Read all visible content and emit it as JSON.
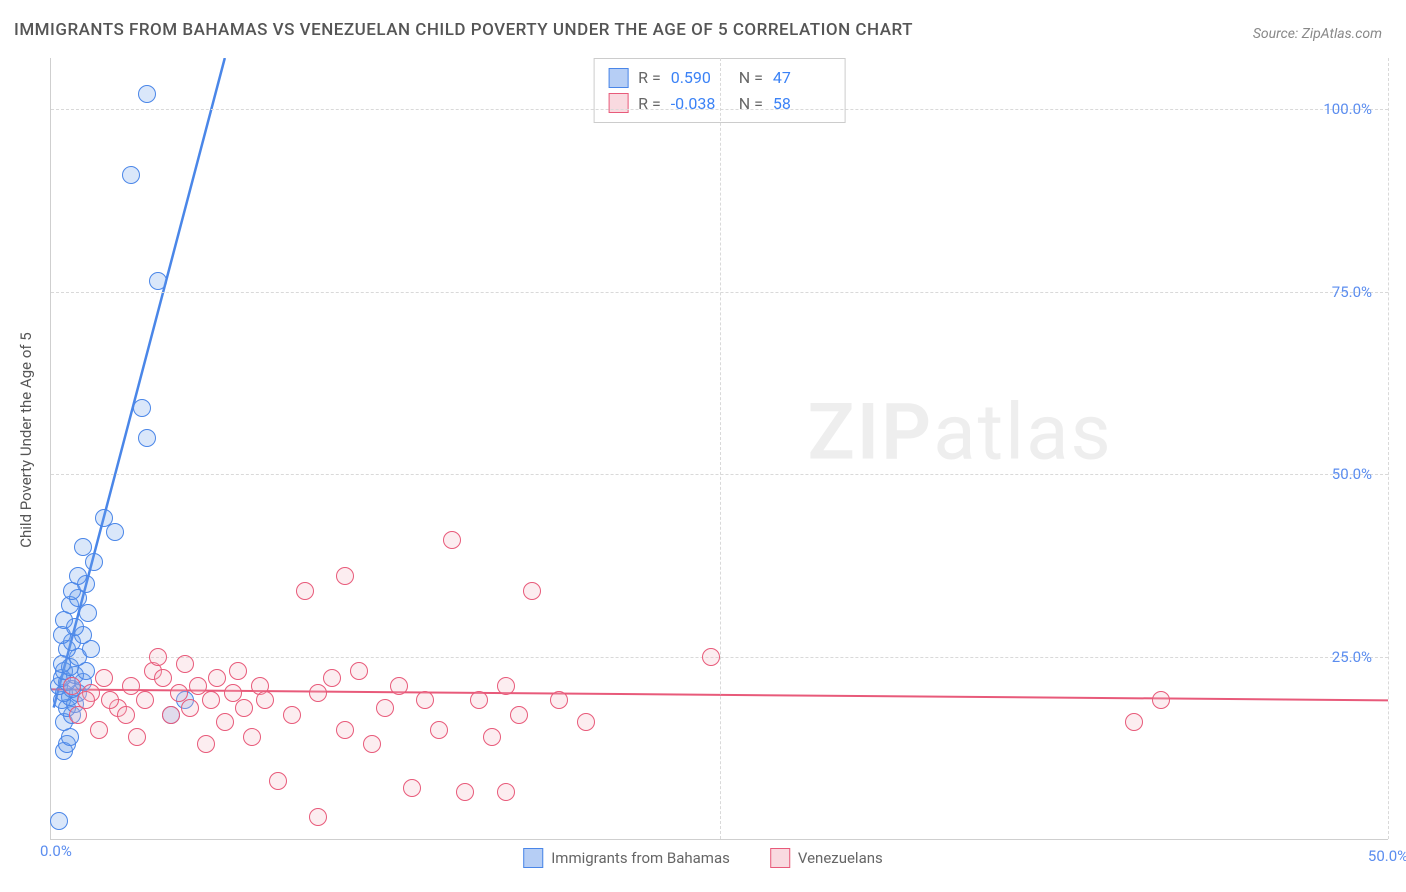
{
  "title": "IMMIGRANTS FROM BAHAMAS VS VENEZUELAN CHILD POVERTY UNDER THE AGE OF 5 CORRELATION CHART",
  "source": "Source: ZipAtlas.com",
  "watermark_main": "ZIP",
  "watermark_sub": "atlas",
  "y_axis_label": "Child Poverty Under the Age of 5",
  "chart": {
    "type": "scatter",
    "background_color": "#ffffff",
    "grid_color": "#d9d9d9",
    "axis_color": "#cfcfcf",
    "tick_label_color": "#5b8def",
    "xlim": [
      0,
      50
    ],
    "ylim": [
      0,
      107
    ],
    "x_ticks": [
      0,
      25,
      50
    ],
    "x_tick_labels": [
      "0.0%",
      "",
      "50.0%"
    ],
    "y_ticks": [
      25,
      50,
      75,
      100
    ],
    "y_tick_labels": [
      "25.0%",
      "50.0%",
      "75.0%",
      "100.0%"
    ],
    "marker_radius": 9,
    "marker_border_width": 1.5,
    "marker_fill_opacity": 0.25
  },
  "series": [
    {
      "name": "Immigrants from Bahamas",
      "color": "#6d9eeb",
      "border_color": "#4a86e8",
      "R": "0.590",
      "N": "47",
      "trend": {
        "x1": 0.1,
        "y1": 18,
        "x2": 6.5,
        "y2": 107,
        "width": 2.5,
        "dashed_extend": true
      },
      "points": [
        [
          0.3,
          2.5
        ],
        [
          0.5,
          12
        ],
        [
          0.6,
          13
        ],
        [
          0.7,
          14
        ],
        [
          0.5,
          16
        ],
        [
          0.8,
          17
        ],
        [
          0.6,
          18
        ],
        [
          0.9,
          18.5
        ],
        [
          0.4,
          19
        ],
        [
          0.7,
          19.5
        ],
        [
          0.5,
          20
        ],
        [
          1.0,
          20
        ],
        [
          0.8,
          20.5
        ],
        [
          0.3,
          21
        ],
        [
          0.6,
          21.5
        ],
        [
          1.2,
          21.5
        ],
        [
          0.4,
          22
        ],
        [
          0.9,
          22.5
        ],
        [
          0.5,
          23
        ],
        [
          1.3,
          23
        ],
        [
          0.7,
          23.5
        ],
        [
          0.4,
          24
        ],
        [
          1.0,
          25
        ],
        [
          0.6,
          26
        ],
        [
          1.5,
          26
        ],
        [
          0.8,
          27
        ],
        [
          0.4,
          28
        ],
        [
          1.2,
          28
        ],
        [
          0.9,
          29
        ],
        [
          0.5,
          30
        ],
        [
          1.4,
          31
        ],
        [
          0.7,
          32
        ],
        [
          1.0,
          33
        ],
        [
          0.8,
          34
        ],
        [
          1.3,
          35
        ],
        [
          1.0,
          36
        ],
        [
          1.6,
          38
        ],
        [
          1.2,
          40
        ],
        [
          2.4,
          42
        ],
        [
          2.0,
          44
        ],
        [
          3.6,
          55
        ],
        [
          3.4,
          59
        ],
        [
          4.0,
          76.5
        ],
        [
          3.0,
          91
        ],
        [
          3.6,
          102
        ],
        [
          4.5,
          17
        ],
        [
          5.0,
          19
        ]
      ]
    },
    {
      "name": "Venezuelans",
      "color": "#f4b6c2",
      "border_color": "#e85a7a",
      "R": "-0.038",
      "N": "58",
      "trend": {
        "x1": 0,
        "y1": 20.5,
        "x2": 50,
        "y2": 19,
        "width": 2,
        "dashed_extend": false
      },
      "points": [
        [
          1.5,
          20
        ],
        [
          2.0,
          22
        ],
        [
          2.5,
          18
        ],
        [
          3.0,
          21
        ],
        [
          3.5,
          19
        ],
        [
          3.8,
          23
        ],
        [
          4.0,
          25
        ],
        [
          4.5,
          17
        ],
        [
          4.8,
          20
        ],
        [
          5.0,
          24
        ],
        [
          5.2,
          18
        ],
        [
          5.5,
          21
        ],
        [
          5.8,
          13
        ],
        [
          6.0,
          19
        ],
        [
          6.2,
          22
        ],
        [
          6.5,
          16
        ],
        [
          6.8,
          20
        ],
        [
          7.0,
          23
        ],
        [
          7.2,
          18
        ],
        [
          7.5,
          14
        ],
        [
          7.8,
          21
        ],
        [
          8.0,
          19
        ],
        [
          8.5,
          8
        ],
        [
          9.0,
          17
        ],
        [
          9.5,
          34
        ],
        [
          10.0,
          20
        ],
        [
          10.0,
          3
        ],
        [
          10.5,
          22
        ],
        [
          11.0,
          15
        ],
        [
          11.0,
          36
        ],
        [
          11.5,
          23
        ],
        [
          12.0,
          13
        ],
        [
          12.5,
          18
        ],
        [
          13.0,
          21
        ],
        [
          13.5,
          7
        ],
        [
          14.0,
          19
        ],
        [
          14.5,
          15
        ],
        [
          15.0,
          41
        ],
        [
          15.5,
          6.5
        ],
        [
          16.0,
          19
        ],
        [
          16.5,
          14
        ],
        [
          17.0,
          21
        ],
        [
          17.0,
          6.5
        ],
        [
          17.5,
          17
        ],
        [
          18.0,
          34
        ],
        [
          19.0,
          19
        ],
        [
          20.0,
          16
        ],
        [
          24.7,
          25
        ],
        [
          40.5,
          16
        ],
        [
          41.5,
          19
        ],
        [
          1.0,
          17
        ],
        [
          1.8,
          15
        ],
        [
          2.2,
          19
        ],
        [
          2.8,
          17
        ],
        [
          3.2,
          14
        ],
        [
          4.2,
          22
        ],
        [
          0.8,
          21
        ],
        [
          1.3,
          19
        ]
      ]
    }
  ],
  "legend": {
    "series1_label": "Immigrants from Bahamas",
    "series2_label": "Venezuelans"
  },
  "stats_labels": {
    "R": "R =",
    "N": "N ="
  }
}
